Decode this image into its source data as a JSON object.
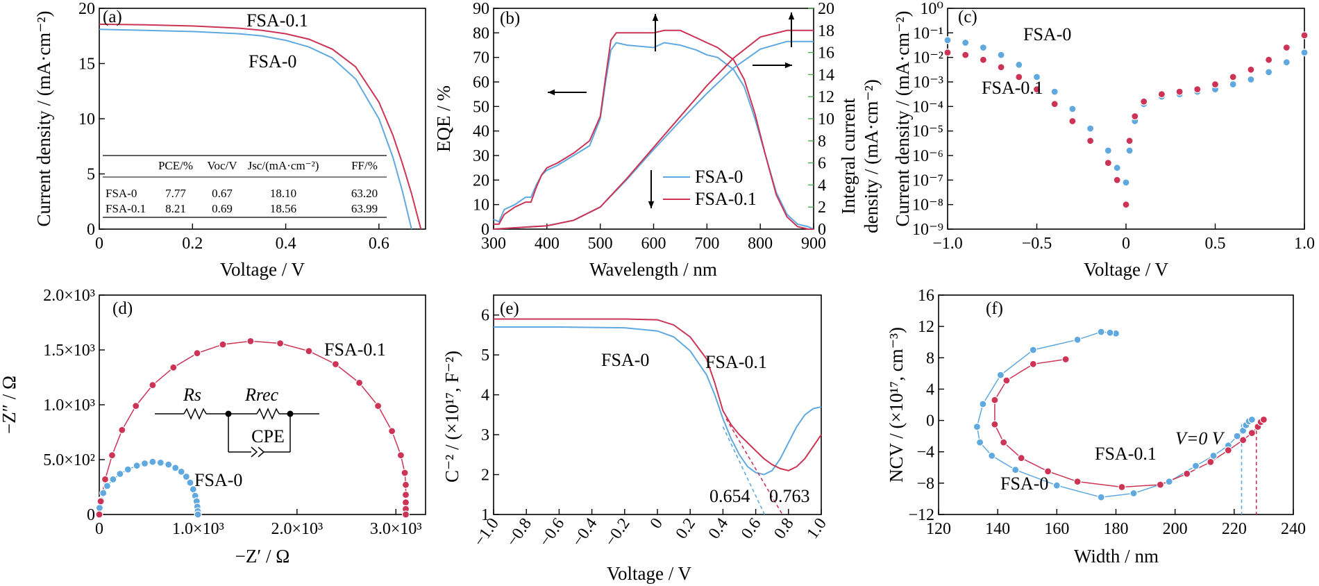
{
  "colors": {
    "fsa0": "#5fa8e0",
    "fsa01": "#cc3355",
    "green_axis": "#4caf50"
  },
  "chart_data": [
    {
      "panel": "(a)",
      "type": "line",
      "xlabel": "Voltage / V",
      "ylabel": "Current density / (mA·cm⁻²)",
      "xlim": [
        0,
        0.7
      ],
      "ylim": [
        0,
        20
      ],
      "xticks": [
        "0",
        "0.2",
        "0.4",
        "0.6"
      ],
      "yticks": [
        "0",
        "5",
        "10",
        "15",
        "20"
      ],
      "series": [
        {
          "name": "FSA-0",
          "x": [
            0,
            0.1,
            0.2,
            0.3,
            0.35,
            0.4,
            0.45,
            0.5,
            0.55,
            0.6,
            0.63,
            0.65,
            0.67
          ],
          "y": [
            18.1,
            18.0,
            17.9,
            17.7,
            17.5,
            17.1,
            16.5,
            15.5,
            13.6,
            10.0,
            6.5,
            3.5,
            0
          ]
        },
        {
          "name": "FSA-0.1",
          "x": [
            0,
            0.1,
            0.2,
            0.3,
            0.35,
            0.4,
            0.45,
            0.5,
            0.55,
            0.6,
            0.63,
            0.65,
            0.67,
            0.69
          ],
          "y": [
            18.56,
            18.5,
            18.4,
            18.2,
            18.0,
            17.7,
            17.2,
            16.3,
            14.7,
            11.5,
            8.5,
            6.0,
            3.2,
            0
          ]
        }
      ],
      "table": {
        "headers": [
          "",
          "PCE/%",
          "Voc/V",
          "Jsc/(mA·cm⁻²)",
          "FF/%"
        ],
        "rows": [
          [
            "FSA-0",
            "7.77",
            "0.67",
            "18.10",
            "63.20"
          ],
          [
            "FSA-0.1",
            "8.21",
            "0.69",
            "18.56",
            "63.99"
          ]
        ]
      }
    },
    {
      "panel": "(b)",
      "type": "line",
      "xlabel": "Wavelength / nm",
      "ylabel": "EQE / %",
      "ylabel_right_1": "Integral current",
      "ylabel_right_2": "density / (mA·cm⁻²)",
      "xlim": [
        300,
        900
      ],
      "ylim": [
        0,
        90
      ],
      "ylim_right": [
        0,
        20
      ],
      "xticks": [
        "300",
        "400",
        "500",
        "600",
        "700",
        "800",
        "900"
      ],
      "yticks": [
        "0",
        "10",
        "20",
        "30",
        "40",
        "50",
        "60",
        "70",
        "80",
        "90"
      ],
      "yticks_right": [
        "0",
        "2",
        "4",
        "6",
        "8",
        "10",
        "12",
        "14",
        "16",
        "18",
        "20"
      ],
      "eqe_series": [
        {
          "name": "FSA-0",
          "x": [
            300,
            310,
            320,
            340,
            360,
            370,
            380,
            390,
            400,
            420,
            450,
            480,
            500,
            510,
            520,
            530,
            550,
            600,
            620,
            650,
            680,
            700,
            720,
            750,
            770,
            790,
            810,
            830,
            850,
            870,
            890,
            900
          ],
          "y": [
            4,
            3,
            8,
            10,
            13,
            13,
            18,
            22,
            24,
            26,
            30,
            34,
            45,
            60,
            73,
            76,
            75,
            74,
            76,
            75,
            73,
            71,
            70,
            65,
            58,
            45,
            30,
            15,
            6,
            2,
            1,
            0
          ]
        },
        {
          "name": "FSA-0.1",
          "x": [
            300,
            310,
            320,
            340,
            360,
            370,
            380,
            390,
            400,
            420,
            450,
            480,
            500,
            510,
            520,
            530,
            550,
            600,
            620,
            650,
            680,
            700,
            720,
            750,
            770,
            790,
            810,
            830,
            850,
            870,
            890,
            900
          ],
          "y": [
            2,
            2,
            6,
            9,
            11,
            11,
            17,
            22,
            25,
            27,
            31,
            36,
            46,
            62,
            77,
            80,
            80,
            80,
            81,
            81,
            78,
            76,
            74,
            69,
            61,
            47,
            30,
            14,
            5,
            1,
            0,
            0
          ]
        }
      ],
      "integral_series": [
        {
          "name": "FSA-0",
          "x": [
            300,
            400,
            450,
            500,
            550,
            600,
            650,
            700,
            750,
            800,
            850,
            900
          ],
          "y": [
            0,
            0.3,
            0.8,
            2.0,
            4.5,
            7.2,
            9.8,
            12.3,
            14.6,
            16.3,
            17.0,
            17.0
          ]
        },
        {
          "name": "FSA-0.1",
          "x": [
            300,
            400,
            450,
            500,
            550,
            600,
            650,
            700,
            750,
            800,
            850,
            900
          ],
          "y": [
            0,
            0.3,
            0.8,
            2.0,
            4.6,
            7.4,
            10.2,
            13.0,
            15.5,
            17.4,
            18.0,
            18.0
          ]
        }
      ]
    },
    {
      "panel": "(c)",
      "type": "scatter",
      "xlabel": "Voltage / V",
      "ylabel": "Current density / (mA·cm⁻²)",
      "yscale": "log",
      "xlim": [
        -1.0,
        1.0
      ],
      "ylim_exp": [
        -9,
        0
      ],
      "xticks": [
        "−1.0",
        "−0.5",
        "0",
        "0.5",
        "1.0"
      ],
      "yticks": [
        "10⁰",
        "10⁻¹",
        "10⁻²",
        "10⁻³",
        "10⁻⁴",
        "10⁻⁵",
        "10⁻⁶",
        "10⁻⁷",
        "10⁻⁸",
        "10⁻⁹"
      ],
      "series": [
        {
          "name": "FSA-0",
          "x": [
            -1.0,
            -0.9,
            -0.8,
            -0.7,
            -0.6,
            -0.5,
            -0.4,
            -0.3,
            -0.2,
            -0.1,
            -0.05,
            0,
            0.02,
            0.05,
            0.1,
            0.2,
            0.3,
            0.4,
            0.5,
            0.6,
            0.7,
            0.8,
            0.9,
            1.0
          ],
          "log10y": [
            -1.3,
            -1.4,
            -1.6,
            -1.9,
            -2.3,
            -2.8,
            -3.4,
            -4.1,
            -4.9,
            -5.8,
            -6.5,
            -7.1,
            -5.8,
            -4.6,
            -3.9,
            -3.6,
            -3.5,
            -3.4,
            -3.3,
            -3.1,
            -2.9,
            -2.6,
            -2.2,
            -1.8
          ]
        },
        {
          "name": "FSA-0.1",
          "x": [
            -1.0,
            -0.9,
            -0.8,
            -0.7,
            -0.6,
            -0.5,
            -0.4,
            -0.3,
            -0.2,
            -0.1,
            -0.05,
            0,
            0.02,
            0.05,
            0.1,
            0.2,
            0.3,
            0.4,
            0.5,
            0.6,
            0.7,
            0.8,
            0.9,
            1.0
          ],
          "log10y": [
            -1.8,
            -1.9,
            -2.1,
            -2.4,
            -2.8,
            -3.3,
            -3.9,
            -4.6,
            -5.4,
            -6.3,
            -7.0,
            -8.0,
            -5.4,
            -4.4,
            -3.8,
            -3.5,
            -3.4,
            -3.3,
            -3.1,
            -2.8,
            -2.5,
            -2.1,
            -1.6,
            -1.1
          ]
        }
      ]
    },
    {
      "panel": "(d)",
      "type": "scatter",
      "xlabel": "−Z′ / Ω",
      "ylabel": "−Z″ / Ω",
      "xlim": [
        0,
        3300
      ],
      "ylim": [
        0,
        2000
      ],
      "xticks": [
        "0",
        "1.0×10³",
        "2.0×10³",
        "3.0×10³"
      ],
      "yticks": [
        "0",
        "5.0×10²",
        "1.0×10³",
        "1.5×10³",
        "2.0×10³"
      ],
      "circuit_labels": [
        "Rs",
        "Rrec",
        "CPE"
      ],
      "series": [
        {
          "name": "FSA-0",
          "x": [
            0,
            3,
            18,
            40,
            80,
            140,
            210,
            290,
            380,
            460,
            540,
            620,
            700,
            770,
            830,
            880,
            920,
            950,
            970,
            985,
            992,
            996,
            998
          ],
          "y": [
            0,
            60,
            130,
            195,
            260,
            320,
            370,
            410,
            445,
            465,
            480,
            472,
            455,
            425,
            390,
            345,
            290,
            230,
            170,
            120,
            70,
            30,
            0
          ]
        },
        {
          "name": "FSA-0.1",
          "x": [
            0,
            15,
            60,
            130,
            230,
            370,
            540,
            750,
            990,
            1250,
            1530,
            1830,
            2120,
            2390,
            2630,
            2820,
            2960,
            3050,
            3090,
            3100,
            3100,
            3100,
            3100,
            3100
          ],
          "y": [
            0,
            120,
            320,
            540,
            770,
            990,
            1180,
            1340,
            1470,
            1550,
            1580,
            1560,
            1490,
            1370,
            1200,
            990,
            760,
            540,
            380,
            270,
            180,
            110,
            50,
            0
          ]
        }
      ]
    },
    {
      "panel": "(e)",
      "type": "line",
      "xlabel": "Voltage / V",
      "ylabel": "C⁻² / (×10¹⁷, F⁻²)",
      "xlim": [
        -1.0,
        1.0
      ],
      "ylim": [
        1,
        6
      ],
      "xticks": [
        "−1.0",
        "−0.8",
        "−0.6",
        "−0.4",
        "−0.2",
        "0",
        "0.2",
        "0.4",
        "0.6",
        "0.8",
        "1.0"
      ],
      "yticks": [
        "1",
        "2",
        "3",
        "4",
        "5",
        "6"
      ],
      "series": [
        {
          "name": "FSA-0",
          "x": [
            -1.0,
            -0.6,
            -0.2,
            0,
            0.1,
            0.2,
            0.3,
            0.35,
            0.4,
            0.45,
            0.5,
            0.55,
            0.6,
            0.65,
            0.7,
            0.75,
            0.8,
            0.85,
            0.9,
            0.95,
            1.0
          ],
          "y": [
            5.7,
            5.7,
            5.68,
            5.6,
            5.45,
            5.1,
            4.5,
            4.0,
            3.4,
            2.9,
            2.5,
            2.2,
            2.05,
            2.0,
            2.1,
            2.4,
            2.8,
            3.2,
            3.5,
            3.65,
            3.7
          ]
        },
        {
          "name": "FSA-0.1",
          "x": [
            -1.0,
            -0.6,
            -0.2,
            0,
            0.1,
            0.2,
            0.3,
            0.35,
            0.4,
            0.45,
            0.5,
            0.55,
            0.6,
            0.65,
            0.7,
            0.75,
            0.8,
            0.85,
            0.9,
            0.95,
            1.0
          ],
          "y": [
            5.9,
            5.9,
            5.9,
            5.88,
            5.75,
            5.45,
            4.9,
            4.3,
            3.6,
            3.25,
            3.0,
            2.8,
            2.6,
            2.4,
            2.25,
            2.15,
            2.1,
            2.2,
            2.4,
            2.7,
            3.0
          ]
        }
      ],
      "intercepts": [
        {
          "name": "FSA-0",
          "value": "0.654"
        },
        {
          "name": "FSA-0.1",
          "value": "0.763"
        }
      ]
    },
    {
      "panel": "(f)",
      "type": "scatter",
      "xlabel": "Width / nm",
      "ylabel": "NCV / (×10¹⁷, cm⁻³)",
      "xlim": [
        120,
        240
      ],
      "ylim": [
        -12,
        16
      ],
      "xticks": [
        "120",
        "140",
        "160",
        "180",
        "200",
        "220",
        "240"
      ],
      "yticks": [
        "−12",
        "−8",
        "−4",
        "0",
        "4",
        "8",
        "12",
        "16"
      ],
      "annotation": "V=0 V",
      "series": [
        {
          "name": "FSA-0",
          "x": [
            180,
            178,
            175,
            167,
            152,
            141,
            135,
            133,
            134,
            138,
            146,
            160,
            175,
            186,
            198,
            207,
            213,
            218,
            221,
            223,
            224,
            225,
            226
          ],
          "y": [
            11.1,
            11.2,
            11.3,
            10.3,
            9.0,
            5.8,
            2.1,
            -0.8,
            -2.8,
            -4.5,
            -6.3,
            -8.3,
            -9.8,
            -9.3,
            -7.8,
            -5.8,
            -4.5,
            -3.2,
            -2.0,
            -1.3,
            -0.6,
            -0.1,
            0.1
          ]
        },
        {
          "name": "FSA-0.1",
          "x": [
            163,
            152,
            143,
            139,
            139,
            142,
            148,
            157,
            167,
            182,
            195,
            204,
            212,
            218,
            223,
            226,
            228,
            229,
            230
          ],
          "y": [
            7.8,
            7.2,
            5.1,
            2.6,
            -0.5,
            -2.8,
            -4.8,
            -6.5,
            -7.8,
            -8.5,
            -8.2,
            -6.8,
            -5.3,
            -3.8,
            -2.5,
            -1.6,
            -0.8,
            -0.2,
            0.1
          ]
        }
      ]
    }
  ]
}
